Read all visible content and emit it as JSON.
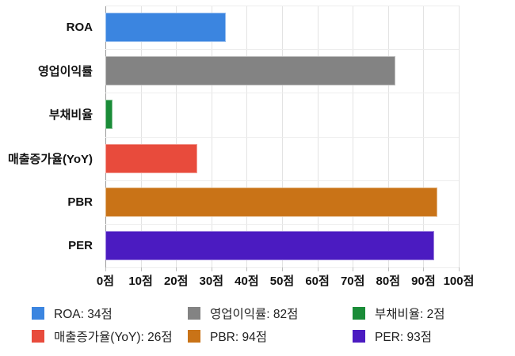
{
  "chart_data": {
    "type": "bar",
    "orientation": "horizontal",
    "title": "",
    "xlabel": "",
    "ylabel": "",
    "unit": "점",
    "xlim": [
      0,
      100
    ],
    "grid": true,
    "categories": [
      "ROA",
      "영업이익률",
      "부채비율",
      "매출증가율(YoY)",
      "PBR",
      "PER"
    ],
    "values": [
      34,
      82,
      2,
      26,
      94,
      93
    ],
    "colors": [
      "#3b85e0",
      "#838383",
      "#1a8c38",
      "#e84b3c",
      "#c97317",
      "#4b1bc1"
    ],
    "x_ticks": [
      "0점",
      "10점",
      "20점",
      "30점",
      "40점",
      "50점",
      "60점",
      "70점",
      "80점",
      "90점",
      "100점"
    ],
    "legend_position": "bottom",
    "legend": [
      {
        "label": "ROA: 34점",
        "color": "#3b85e0"
      },
      {
        "label": "영업이익률: 82점",
        "color": "#838383"
      },
      {
        "label": "부채비율: 2점",
        "color": "#1a8c38"
      },
      {
        "label": "매출증가율(YoY): 26점",
        "color": "#e84b3c"
      },
      {
        "label": "PBR: 94점",
        "color": "#c97317"
      },
      {
        "label": "PER: 93점",
        "color": "#4b1bc1"
      }
    ]
  }
}
